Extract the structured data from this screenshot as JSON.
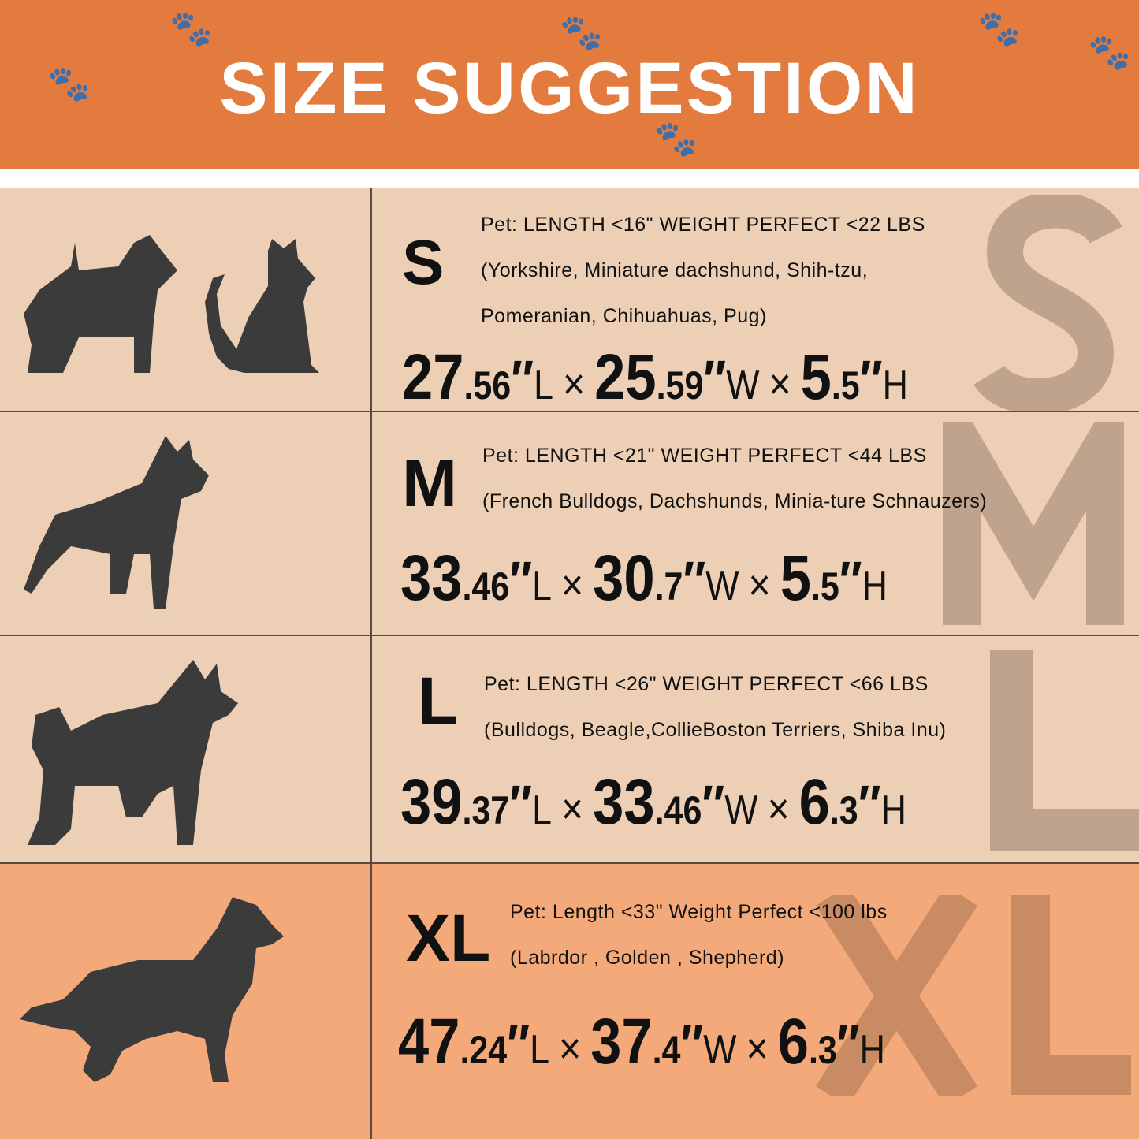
{
  "title": "SIZE SUGGESTION",
  "colors": {
    "header": "#E37B3F",
    "row_bg": "#EDCFB5",
    "xl_bg": "#F4A97A",
    "silhouette": "#3B3B3B"
  },
  "rows": [
    {
      "size": "S",
      "info": [
        "Pet:  LENGTH <16\"  WEIGHT PERFECT <22 LBS",
        "(Yorkshire, Miniature dachshund, Shih-tzu,",
        "Pomeranian, Chihuahuas, Pug)"
      ],
      "dims": [
        {
          "int": "27",
          "dec": ".56",
          "mark": "″",
          "unit": "L"
        },
        {
          "int": "25",
          "dec": ".59",
          "mark": "″",
          "unit": "W"
        },
        {
          "int": "5",
          "dec": ".5",
          "mark": "″",
          "unit": "H"
        }
      ],
      "times": "×",
      "pets": [
        "dog-silhouette",
        "cat-silhouette"
      ]
    },
    {
      "size": "M",
      "info": [
        "Pet:  LENGTH <21\"  WEIGHT PERFECT <44 LBS",
        "(French Bulldogs, Dachshunds, Minia-ture Schnauzers)"
      ],
      "dims": [
        {
          "int": "33",
          "dec": ".46",
          "mark": "″",
          "unit": "L"
        },
        {
          "int": "30",
          "dec": ".7",
          "mark": "″",
          "unit": "W"
        },
        {
          "int": "5",
          "dec": ".5",
          "mark": "″",
          "unit": "H"
        }
      ],
      "times": "×",
      "pets": [
        "dog-silhouette"
      ]
    },
    {
      "size": "L",
      "info": [
        "Pet:  LENGTH <26\" WEIGHT PERFECT <66 LBS",
        "(Bulldogs, Beagle,CollieBoston Terriers, Shiba Inu)"
      ],
      "dims": [
        {
          "int": "39",
          "dec": ".37",
          "mark": "″",
          "unit": "L"
        },
        {
          "int": "33",
          "dec": ".46",
          "mark": "″",
          "unit": "W"
        },
        {
          "int": "6",
          "dec": ".3",
          "mark": "″",
          "unit": "H"
        }
      ],
      "times": "×",
      "pets": [
        "dog-silhouette"
      ]
    },
    {
      "size": "XL",
      "info": [
        "Pet:  Length <33\"  Weight Perfect <100 lbs",
        "(Labrdor , Golden ,  Shepherd)"
      ],
      "dims": [
        {
          "int": "47",
          "dec": ".24",
          "mark": "″",
          "unit": "L"
        },
        {
          "int": "37",
          "dec": ".4",
          "mark": "″",
          "unit": "W"
        },
        {
          "int": "6",
          "dec": ".3",
          "mark": "″",
          "unit": "H"
        }
      ],
      "times": "×",
      "pets": [
        "dog-silhouette"
      ]
    }
  ]
}
